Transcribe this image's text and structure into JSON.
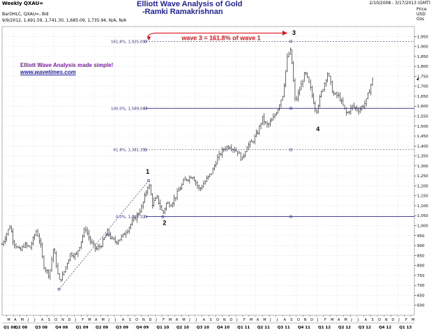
{
  "header": {
    "symbol": "Weekly QXAU=",
    "date_range": "2/10/2008 - 3/17/2013 (GMT)",
    "study": "BarOHLC, QXAU=, Bid",
    "last_bar": "9/9/2012, 1,691.59, 1,741.30, 1,685.09, 1,735.94, N/A, N/A"
  },
  "title": {
    "line1": "Elliott Wave Analysis of Gold",
    "line2": "-Ramki Ramakrishnan"
  },
  "promo": {
    "tagline": "Elliott Wave Analysis made simple!",
    "url": "www.wavetimes.com"
  },
  "price_axis_header": [
    "Price",
    "USD",
    "Ozs"
  ],
  "annotation": "wave 3 = 161.8% of wave 1",
  "colors": {
    "bars": "#000000",
    "fib_lines": "#2b2b8c",
    "title": "#1f1fa8",
    "tagline": "#7b1fa2",
    "annotation": "#e0141e",
    "grid": "#bfbfbf"
  },
  "chart_data": {
    "type": "ohlc",
    "timeframe": "weekly",
    "x_range": [
      "2008-02-10",
      "2013-03-17"
    ],
    "ylim": [
      550,
      2000
    ],
    "y_ticks": [
      600,
      650,
      700,
      750,
      800,
      850,
      900,
      950,
      1000,
      1050,
      1100,
      1150,
      1200,
      1250,
      1300,
      1350,
      1400,
      1450,
      1500,
      1550,
      1600,
      1650,
      1700,
      1750,
      1800,
      1850,
      1900,
      1950
    ],
    "y_tick_labels": [
      "600",
      "650",
      "700",
      "750",
      "800",
      "850",
      "900",
      "950",
      "1,000",
      "1,050",
      "1,100",
      "1,150",
      "1,200",
      "1,250",
      "1,300",
      "1,350",
      "1,400",
      "1,450",
      "1,500",
      "1,550",
      "1,600",
      "1,650",
      "1,700",
      "1,750",
      "1,800",
      "1,850",
      "1,900",
      "1,950"
    ],
    "quarters": [
      {
        "label": "Q1 08",
        "date": "2008-02-10"
      },
      {
        "label": "Q2 08",
        "date": "2008-04-01"
      },
      {
        "label": "Q3 08",
        "date": "2008-07-01"
      },
      {
        "label": "Q4 08",
        "date": "2008-10-01"
      },
      {
        "label": "Q1 09",
        "date": "2009-01-01"
      },
      {
        "label": "Q2 09",
        "date": "2009-04-01"
      },
      {
        "label": "Q3 09",
        "date": "2009-07-01"
      },
      {
        "label": "Q4 09",
        "date": "2009-10-01"
      },
      {
        "label": "Q1 10",
        "date": "2010-01-01"
      },
      {
        "label": "Q2 10",
        "date": "2010-04-01"
      },
      {
        "label": "Q3 10",
        "date": "2010-07-01"
      },
      {
        "label": "Q4 10",
        "date": "2010-10-01"
      },
      {
        "label": "Q1 11",
        "date": "2011-01-01"
      },
      {
        "label": "Q2 11",
        "date": "2011-04-01"
      },
      {
        "label": "Q3 11",
        "date": "2011-07-01"
      },
      {
        "label": "Q4 11",
        "date": "2011-10-01"
      },
      {
        "label": "Q1 12",
        "date": "2012-01-01"
      },
      {
        "label": "Q2 12",
        "date": "2012-04-01"
      },
      {
        "label": "Q3 12",
        "date": "2012-07-01"
      },
      {
        "label": "Q4 12",
        "date": "2012-10-01"
      },
      {
        "label": "Q1 13",
        "date": "2013-01-01"
      }
    ],
    "fib_levels": [
      {
        "label": "161.8%, 1,925.09",
        "value": 1925.09,
        "start": "2009-11-20"
      },
      {
        "label": "100.0%, 1,589.06",
        "value": 1589.06,
        "start": "2009-11-20"
      },
      {
        "label": "61.8%, 1,381.35",
        "value": 1381.35,
        "start": "2009-11-20"
      },
      {
        "label": "0.0%, 1,045.32",
        "value": 1045.32,
        "start": "2009-11-20"
      }
    ],
    "wave_labels": [
      {
        "label": "1",
        "date": "2009-12-03",
        "price": 1226
      },
      {
        "label": "2",
        "date": "2010-02-05",
        "price": 1045
      },
      {
        "label": "3",
        "date": "2011-09-06",
        "price": 1923
      },
      {
        "label": "4",
        "date": "2011-12-29",
        "price": 1523
      }
    ],
    "wave1_line": [
      {
        "date": "2008-10-24",
        "price": 681
      },
      {
        "date": "2009-12-03",
        "price": 1226
      }
    ],
    "anchor_points": [
      {
        "date": "2008-10-24",
        "price": 681
      },
      {
        "date": "2009-12-03",
        "price": 1226
      },
      {
        "date": "2010-02-05",
        "price": 1045
      },
      {
        "date": "2009-06-01",
        "price": 955
      }
    ],
    "annotation_arrow": {
      "from": {
        "date": "2009-11-20",
        "price": 1925
      },
      "to": {
        "date": "2011-09-06",
        "price": 1925
      }
    },
    "series": [
      {
        "name": "QXAU= weekly close",
        "points": [
          [
            "2008-02-10",
            906
          ],
          [
            "2008-03-17",
            1000
          ],
          [
            "2008-04-01",
            920
          ],
          [
            "2008-05-01",
            870
          ],
          [
            "2008-05-20",
            905
          ],
          [
            "2008-06-15",
            890
          ],
          [
            "2008-07-14",
            975
          ],
          [
            "2008-08-01",
            910
          ],
          [
            "2008-08-15",
            800
          ],
          [
            "2008-09-10",
            750
          ],
          [
            "2008-09-29",
            890
          ],
          [
            "2008-10-10",
            820
          ],
          [
            "2008-10-24",
            720
          ],
          [
            "2008-11-10",
            750
          ],
          [
            "2008-11-25",
            800
          ],
          [
            "2008-12-15",
            860
          ],
          [
            "2009-01-10",
            850
          ],
          [
            "2009-02-20",
            990
          ],
          [
            "2009-03-15",
            920
          ],
          [
            "2009-04-10",
            880
          ],
          [
            "2009-05-01",
            900
          ],
          [
            "2009-06-01",
            970
          ],
          [
            "2009-06-20",
            930
          ],
          [
            "2009-07-10",
            920
          ],
          [
            "2009-08-10",
            950
          ],
          [
            "2009-09-15",
            1010
          ],
          [
            "2009-10-10",
            1050
          ],
          [
            "2009-11-01",
            1090
          ],
          [
            "2009-12-03",
            1215
          ],
          [
            "2009-12-20",
            1110
          ],
          [
            "2010-01-10",
            1140
          ],
          [
            "2010-02-05",
            1060
          ],
          [
            "2010-02-20",
            1110
          ],
          [
            "2010-03-15",
            1110
          ],
          [
            "2010-04-10",
            1160
          ],
          [
            "2010-05-15",
            1230
          ],
          [
            "2010-06-20",
            1250
          ],
          [
            "2010-07-20",
            1180
          ],
          [
            "2010-08-20",
            1230
          ],
          [
            "2010-09-15",
            1270
          ],
          [
            "2010-10-10",
            1340
          ],
          [
            "2010-11-10",
            1390
          ],
          [
            "2010-12-05",
            1400
          ],
          [
            "2011-01-10",
            1370
          ],
          [
            "2011-01-28",
            1330
          ],
          [
            "2011-02-20",
            1400
          ],
          [
            "2011-03-15",
            1420
          ],
          [
            "2011-04-10",
            1470
          ],
          [
            "2011-05-01",
            1540
          ],
          [
            "2011-05-20",
            1500
          ],
          [
            "2011-06-15",
            1530
          ],
          [
            "2011-07-10",
            1590
          ],
          [
            "2011-08-01",
            1660
          ],
          [
            "2011-08-22",
            1850
          ],
          [
            "2011-09-06",
            1880
          ],
          [
            "2011-09-26",
            1620
          ],
          [
            "2011-10-15",
            1680
          ],
          [
            "2011-11-10",
            1770
          ],
          [
            "2011-12-01",
            1700
          ],
          [
            "2011-12-29",
            1570
          ],
          [
            "2012-01-20",
            1660
          ],
          [
            "2012-02-20",
            1770
          ],
          [
            "2012-03-15",
            1660
          ],
          [
            "2012-04-10",
            1650
          ],
          [
            "2012-05-15",
            1560
          ],
          [
            "2012-06-10",
            1600
          ],
          [
            "2012-07-10",
            1580
          ],
          [
            "2012-08-10",
            1620
          ],
          [
            "2012-09-09",
            1735
          ]
        ]
      }
    ]
  }
}
